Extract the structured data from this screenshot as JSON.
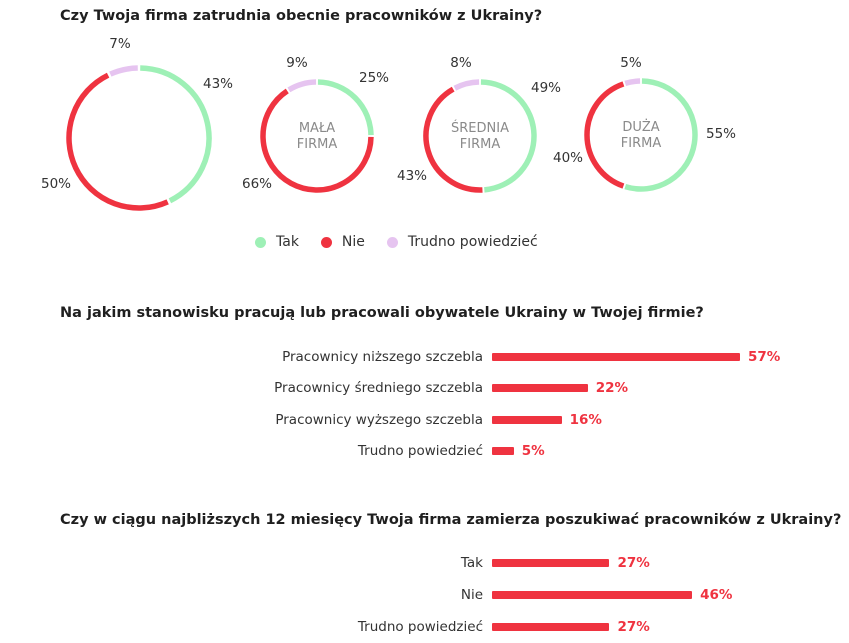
{
  "colors": {
    "tak": "#9ef0b6",
    "nie": "#ef3340",
    "trudno": "#e6c4f0",
    "value_text": "#ef3340",
    "center_label": "#8a8a8a"
  },
  "chart_data": [
    {
      "type": "pie",
      "variant": "donut",
      "title": "Czy Twoja firma zatrudnia obecnie pracowników z Ukrainy?",
      "legend": [
        "Tak",
        "Nie",
        "Trudno powiedzieć"
      ],
      "donuts": [
        {
          "center_label": [],
          "values": [
            43,
            50,
            7
          ],
          "labels": [
            "43%",
            "50%",
            "7%"
          ]
        },
        {
          "center_label": [
            "MAŁA",
            "FIRMA"
          ],
          "values": [
            25,
            66,
            9
          ],
          "labels": [
            "25%",
            "66%",
            "9%"
          ]
        },
        {
          "center_label": [
            "ŚREDNIA",
            "FIRMA"
          ],
          "values": [
            49,
            43,
            8
          ],
          "labels": [
            "49%",
            "43%",
            "8%"
          ]
        },
        {
          "center_label": [
            "DUŻA",
            "FIRMA"
          ],
          "values": [
            55,
            40,
            5
          ],
          "labels": [
            "55%",
            "40%",
            "5%"
          ]
        }
      ]
    },
    {
      "type": "bar",
      "orientation": "horizontal",
      "title": "Na jakim stanowisku pracują lub pracowali obywatele Ukrainy w Twojej firmie?",
      "categories": [
        "Pracownicy niższego szczebla",
        "Pracownicy średniego szczebla",
        "Pracownicy wyższego szczebla",
        "Trudno powiedzieć"
      ],
      "values": [
        57,
        22,
        16,
        5
      ],
      "labels": [
        "57%",
        "22%",
        "16%",
        "5%"
      ],
      "xlim": [
        0,
        100
      ]
    },
    {
      "type": "bar",
      "orientation": "horizontal",
      "title": "Czy w ciągu najbliższych 12 miesięcy Twoja firma zamierza poszukiwać pracowników z Ukrainy?",
      "categories": [
        "Tak",
        "Nie",
        "Trudno powiedzieć"
      ],
      "values": [
        27,
        46,
        27
      ],
      "labels": [
        "27%",
        "46%",
        "27%"
      ],
      "xlim": [
        0,
        100
      ]
    }
  ]
}
